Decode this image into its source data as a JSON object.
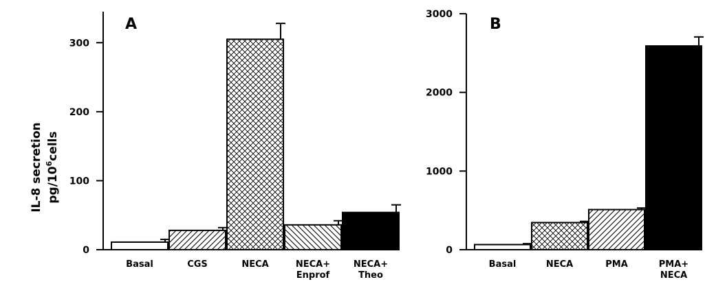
{
  "figure": {
    "ylabel_line1": "IL-8 secretion",
    "ylabel_line2_prefix": "pg/10",
    "ylabel_line2_sup": "6",
    "ylabel_line2_suffix": "cells"
  },
  "chart_data": [
    {
      "type": "bar",
      "panel_label": "A",
      "categories": [
        "Basal",
        "CGS",
        "NECA",
        "NECA+\nEnprof",
        "NECA+\nTheo"
      ],
      "values": [
        11,
        28,
        305,
        36,
        54
      ],
      "errors": [
        4,
        4,
        23,
        6,
        11
      ],
      "fills": [
        "white",
        "diagonal-hatch",
        "crosshatch",
        "backslash-hatch",
        "black"
      ],
      "ylim": [
        0,
        345
      ],
      "yticks": [
        0,
        100,
        200,
        300
      ],
      "ylabel": "IL-8 secretion pg/10^6cells"
    },
    {
      "type": "bar",
      "panel_label": "B",
      "categories": [
        "Basal",
        "NECA",
        "PMA",
        "PMA+\nNECA"
      ],
      "values": [
        65,
        345,
        510,
        2590
      ],
      "errors": [
        12,
        15,
        20,
        115
      ],
      "fills": [
        "white",
        "crosshatch",
        "diagonal-hatch",
        "black"
      ],
      "ylim": [
        0,
        3000
      ],
      "yticks": [
        0,
        1000,
        2000,
        3000
      ],
      "ylabel": "IL-8 secretion pg/10^6cells"
    }
  ]
}
